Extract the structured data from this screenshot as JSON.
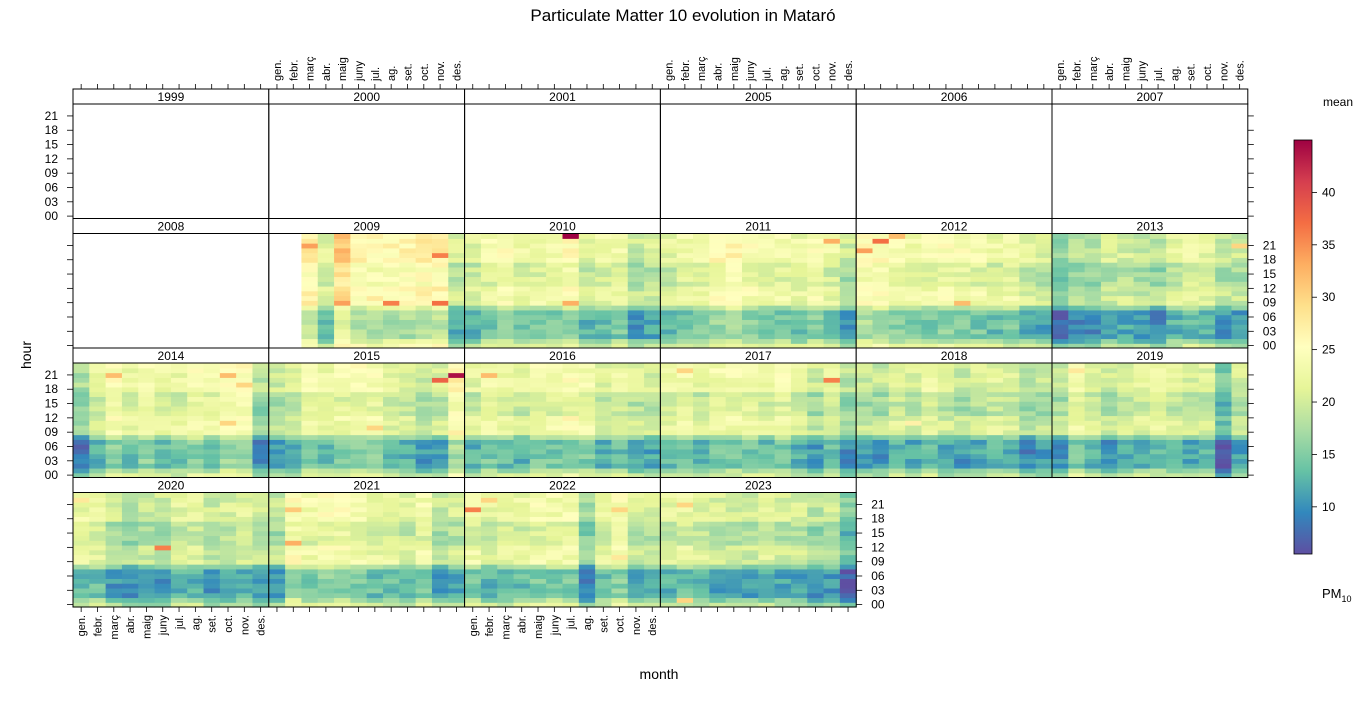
{
  "chart_data": {
    "type": "heatmap",
    "title": "Particulate Matter 10 evolution in Mataró",
    "xlabel": "month",
    "ylabel": "hour",
    "month_labels": [
      "gen.",
      "febr.",
      "març",
      "abr.",
      "maig",
      "juny",
      "jul.",
      "ag.",
      "set.",
      "oct.",
      "nov.",
      "des."
    ],
    "hour_labels": [
      "00",
      "03",
      "06",
      "09",
      "12",
      "15",
      "18",
      "21"
    ],
    "hours": [
      0,
      23
    ],
    "colorbar": {
      "title": "mean",
      "label_main": "PM",
      "label_sub": "10",
      "range": [
        5.5,
        45
      ],
      "ticks": [
        10,
        15,
        20,
        25,
        30,
        35,
        40
      ],
      "palette": [
        "#5E4FA2",
        "#3288BD",
        "#66C2A5",
        "#ABDDA4",
        "#E6F598",
        "#FFFFBF",
        "#FEE08B",
        "#FDAE61",
        "#F46D43",
        "#D53E4F",
        "#9E0142"
      ]
    },
    "layout": {
      "columns": 6,
      "rows": 4
    },
    "panels": [
      {
        "year": "1999",
        "start_month": null
      },
      {
        "year": "2000",
        "start_month": null
      },
      {
        "year": "2001",
        "start_month": null
      },
      {
        "year": "2005",
        "start_month": null
      },
      {
        "year": "2006",
        "start_month": null
      },
      {
        "year": "2007",
        "start_month": null
      },
      {
        "year": "2008",
        "start_month": null
      },
      {
        "year": "2009",
        "start_month": 3,
        "monthly_mean": [
          null,
          null,
          25,
          19,
          28,
          24,
          24,
          24,
          24,
          25,
          25,
          18
        ],
        "hotspots": [
          {
            "month": 3,
            "hour": 21,
            "value": 34
          },
          {
            "month": 5,
            "hour": 20,
            "value": 33
          },
          {
            "month": 5,
            "hour": 9,
            "value": 34
          },
          {
            "month": 8,
            "hour": 9,
            "value": 36
          },
          {
            "month": 11,
            "hour": 9,
            "value": 37
          },
          {
            "month": 11,
            "hour": 19,
            "value": 36
          }
        ]
      },
      {
        "year": "2010",
        "start_month": 1,
        "monthly_mean": [
          19,
          21,
          22,
          20,
          21,
          21,
          23,
          19,
          20,
          21,
          17,
          18
        ],
        "hotspots": [
          {
            "month": 7,
            "hour": 23,
            "value": 45
          },
          {
            "month": 7,
            "hour": 9,
            "value": 33
          }
        ]
      },
      {
        "year": "2011",
        "start_month": 1,
        "monthly_mean": [
          19,
          21,
          21,
          23,
          24,
          22,
          21,
          21,
          20,
          22,
          20,
          17
        ],
        "hotspots": [
          {
            "month": 11,
            "hour": 22,
            "value": 33
          }
        ]
      },
      {
        "year": "2012",
        "start_month": 1,
        "monthly_mean": [
          24,
          23,
          22,
          21,
          21,
          22,
          22,
          21,
          20,
          21,
          19,
          18
        ],
        "hotspots": [
          {
            "month": 1,
            "hour": 20,
            "value": 34
          },
          {
            "month": 2,
            "hour": 22,
            "value": 37
          },
          {
            "month": 3,
            "hour": 23,
            "value": 32
          },
          {
            "month": 7,
            "hour": 9,
            "value": 32
          }
        ]
      },
      {
        "year": "2013",
        "start_month": 1,
        "monthly_mean": [
          14,
          16,
          16,
          18,
          18,
          17,
          16,
          19,
          20,
          19,
          17,
          17
        ],
        "hotspots": [
          {
            "month": 12,
            "hour": 21,
            "value": 30
          }
        ]
      },
      {
        "year": "2014",
        "start_month": 1,
        "monthly_mean": [
          15,
          19,
          22,
          20,
          22,
          20,
          20,
          22,
          21,
          23,
          23,
          16
        ],
        "hotspots": [
          {
            "month": 3,
            "hour": 21,
            "value": 32
          },
          {
            "month": 10,
            "hour": 21,
            "value": 32
          },
          {
            "month": 11,
            "hour": 19,
            "value": 30
          },
          {
            "month": 10,
            "hour": 11,
            "value": 30
          }
        ]
      },
      {
        "year": "2015",
        "start_month": 1,
        "monthly_mean": [
          17,
          18,
          21,
          20,
          21,
          22,
          22,
          19,
          19,
          17,
          18,
          24
        ],
        "hotspots": [
          {
            "month": 12,
            "hour": 21,
            "value": 44
          },
          {
            "month": 11,
            "hour": 20,
            "value": 38
          },
          {
            "month": 7,
            "hour": 10,
            "value": 30
          }
        ]
      },
      {
        "year": "2016",
        "start_month": 1,
        "monthly_mean": [
          19,
          21,
          20,
          19,
          21,
          21,
          22,
          21,
          19,
          20,
          18,
          18
        ],
        "hotspots": [
          {
            "month": 2,
            "hour": 21,
            "value": 32
          },
          {
            "month": 7,
            "hour": 12,
            "value": 27
          }
        ]
      },
      {
        "year": "2017",
        "start_month": 1,
        "monthly_mean": [
          20,
          21,
          19,
          21,
          21,
          21,
          20,
          21,
          19,
          17,
          20,
          16
        ],
        "hotspots": [
          {
            "month": 11,
            "hour": 20,
            "value": 36
          },
          {
            "month": 2,
            "hour": 22,
            "value": 30
          }
        ]
      },
      {
        "year": "2018",
        "start_month": 1,
        "monthly_mean": [
          17,
          17,
          19,
          18,
          20,
          18,
          17,
          18,
          19,
          19,
          16,
          17
        ],
        "hotspots": [
          {
            "month": 4,
            "hour": 11,
            "value": 27
          }
        ]
      },
      {
        "year": "2019",
        "start_month": 1,
        "monthly_mean": [
          17,
          21,
          19,
          17,
          18,
          19,
          20,
          19,
          18,
          19,
          12,
          18
        ],
        "hotspots": [
          {
            "month": 2,
            "hour": 22,
            "value": 28
          }
        ]
      },
      {
        "year": "2020",
        "start_month": 1,
        "monthly_mean": [
          20,
          20,
          17,
          16,
          17,
          17,
          19,
          19,
          17,
          18,
          19,
          17
        ],
        "hotspots": [
          {
            "month": 6,
            "hour": 12,
            "value": 36
          },
          {
            "month": 1,
            "hour": 22,
            "value": 28
          }
        ]
      },
      {
        "year": "2021",
        "start_month": 1,
        "monthly_mean": [
          17,
          23,
          21,
          22,
          22,
          21,
          20,
          20,
          19,
          21,
          17,
          18
        ],
        "hotspots": [
          {
            "month": 2,
            "hour": 13,
            "value": 33
          },
          {
            "month": 2,
            "hour": 20,
            "value": 31
          }
        ]
      },
      {
        "year": "2022",
        "start_month": 1,
        "monthly_mean": [
          21,
          19,
          20,
          20,
          21,
          21,
          21,
          15,
          20,
          22,
          18,
          18
        ],
        "hotspots": [
          {
            "month": 1,
            "hour": 20,
            "value": 36
          },
          {
            "month": 2,
            "hour": 22,
            "value": 30
          },
          {
            "month": 10,
            "hour": 20,
            "value": 30
          },
          {
            "month": 10,
            "hour": 10,
            "value": 28
          }
        ]
      },
      {
        "year": "2023",
        "start_month": 1,
        "monthly_mean": [
          19,
          20,
          19,
          18,
          18,
          18,
          19,
          18,
          18,
          16,
          17,
          13
        ],
        "hotspots": [
          {
            "month": 2,
            "hour": 21,
            "value": 30
          },
          {
            "month": 2,
            "hour": 1,
            "value": 30
          }
        ]
      }
    ]
  }
}
